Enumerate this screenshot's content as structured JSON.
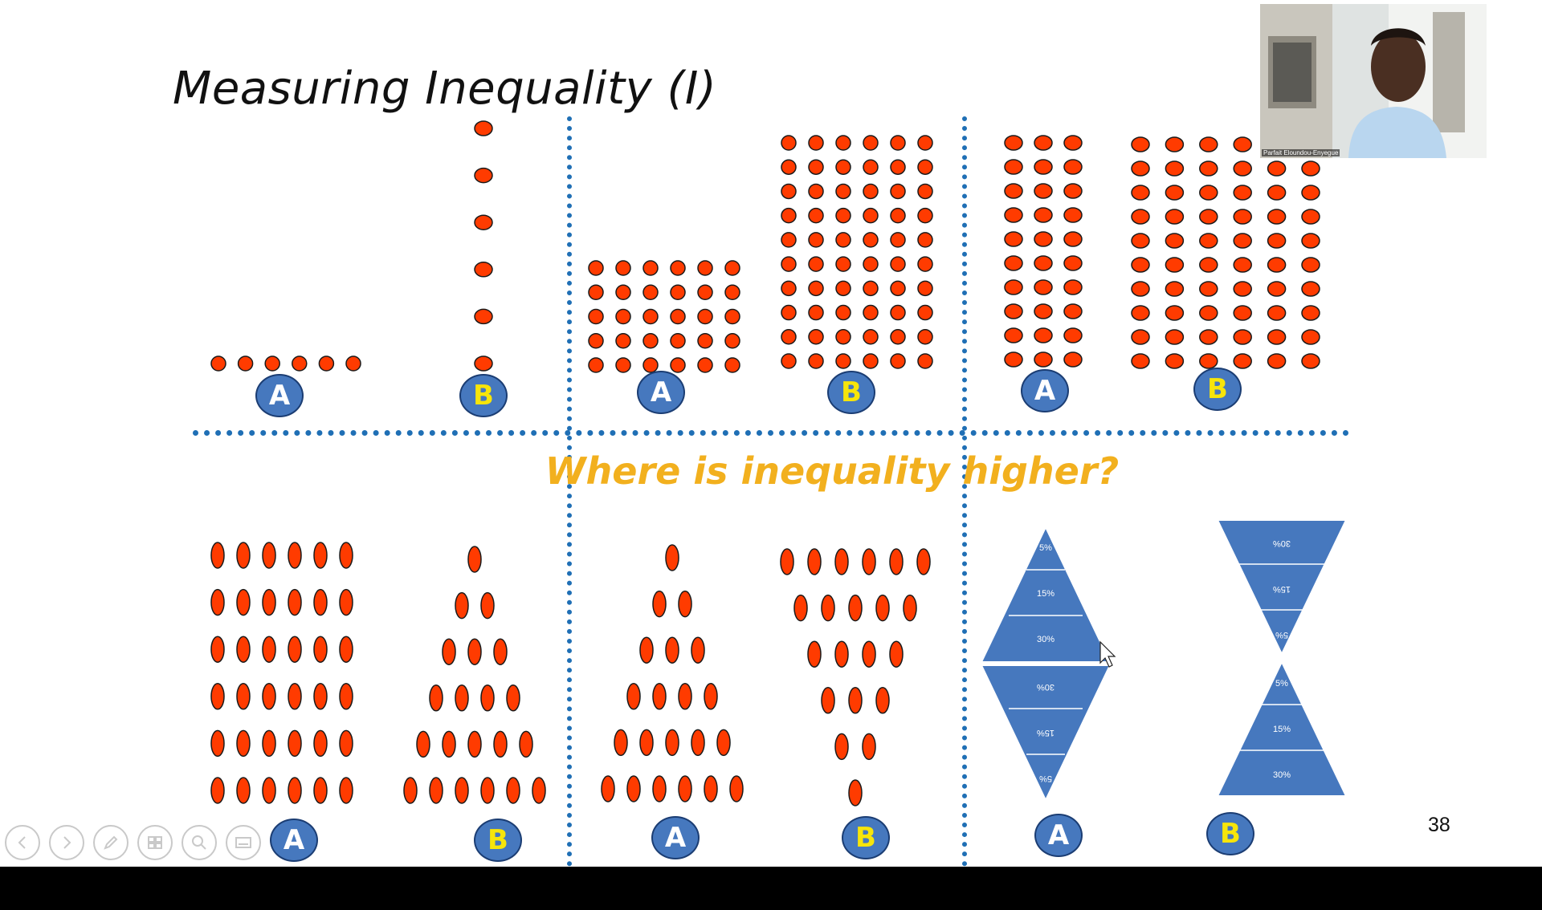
{
  "slide": {
    "title": "Measuring Inequality (I)",
    "question": "Where is inequality higher?",
    "page_number": "38",
    "label_a": "A",
    "label_b": "B",
    "dot_fill": "#ff3b00",
    "dot_stroke": "#1a1a1a",
    "badge_fill": "#4678be",
    "badge_letter_a": "#ffffff",
    "badge_letter_b": "#f7e50a",
    "divider_color": "#1f6fb5",
    "question_color": "#f2b01e",
    "triangle_fill": "#4678be"
  },
  "panels": {
    "top_left": {
      "A_row_counts": [
        6
      ],
      "B_column_count": 6
    },
    "top_middle": {
      "A_grid": {
        "rows": 5,
        "cols": 6
      },
      "B_grid": {
        "rows": 10,
        "cols": 6
      }
    },
    "top_right": {
      "A_grid": {
        "rows": 10,
        "cols": 3
      },
      "B_grid": {
        "rows": 10,
        "cols": 6
      }
    },
    "bottom_left": {
      "A_row_counts": [
        6,
        6,
        6,
        6,
        6,
        6
      ],
      "B_row_counts": [
        1,
        2,
        3,
        4,
        5,
        6
      ]
    },
    "bottom_middle": {
      "A_row_counts": [
        1,
        2,
        3,
        4,
        5,
        6
      ],
      "B_row_counts": [
        6,
        5,
        4,
        3,
        2,
        1
      ]
    },
    "bottom_right": {
      "A_upper_labels": [
        "5%",
        "15%",
        "30%"
      ],
      "A_lower_labels": [
        "30%",
        "15%",
        "5%"
      ],
      "B_upper_labels": [
        "30%",
        "15%",
        "5%"
      ],
      "B_lower_labels": [
        "5%",
        "15%",
        "30%"
      ]
    }
  },
  "webcam": {
    "name_label": "Parfait Eloundou-Enyegue"
  },
  "toolbar": {
    "icons": [
      "previous-icon",
      "next-icon",
      "pen-icon",
      "slides-icon",
      "zoom-icon",
      "subtitles-icon"
    ]
  }
}
